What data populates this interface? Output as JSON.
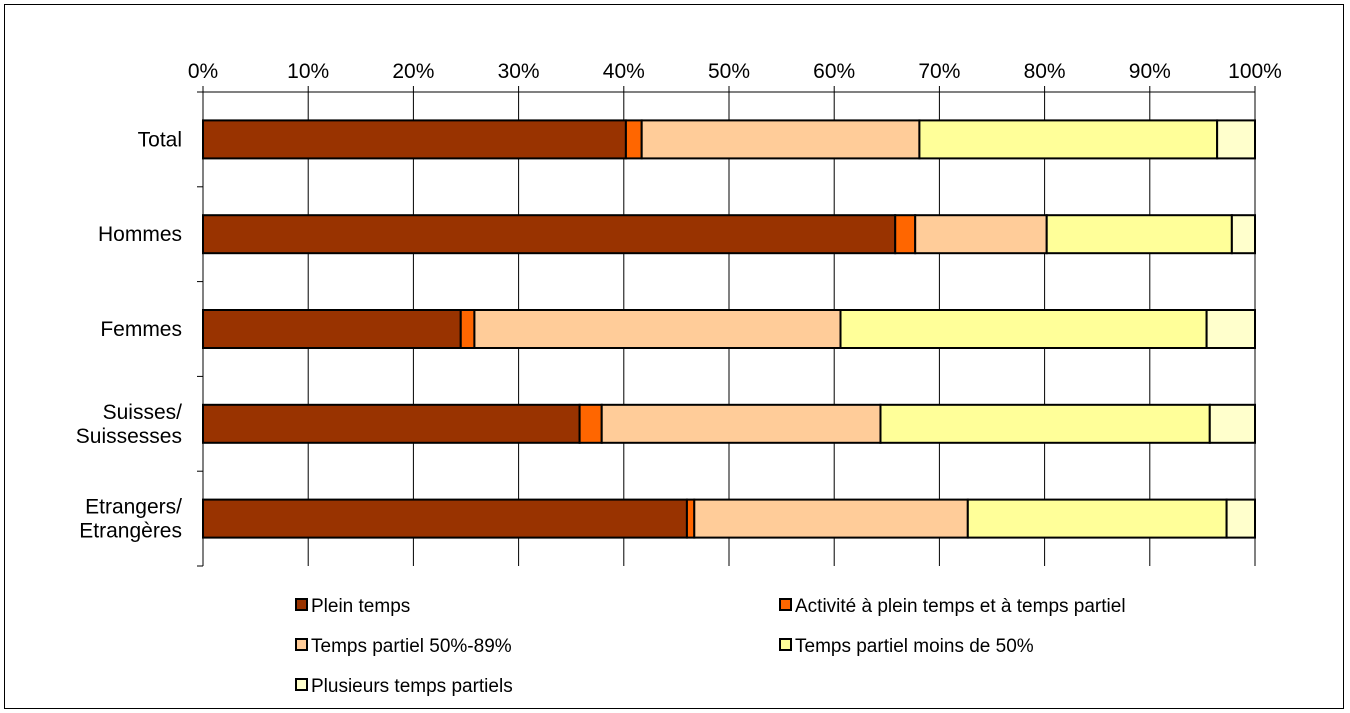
{
  "chart_data": {
    "type": "bar",
    "orientation": "horizontal",
    "stacked": true,
    "percent_stacked": true,
    "categories": [
      [
        "Total"
      ],
      [
        "Hommes"
      ],
      [
        "Femmes"
      ],
      [
        "Suisses/",
        "Suissesses"
      ],
      [
        "Etrangers/",
        "Etrangères"
      ]
    ],
    "series": [
      {
        "name": "Plein temps",
        "color": "#993300",
        "values": [
          40.2,
          65.8,
          24.5,
          35.8,
          46.0
        ]
      },
      {
        "name": "Activité à plein temps et à temps partiel",
        "color": "#FF6600",
        "values": [
          1.5,
          1.9,
          1.3,
          2.1,
          0.7
        ]
      },
      {
        "name": "Temps partiel 50%-89%",
        "color": "#FFCC99",
        "values": [
          26.4,
          12.5,
          34.8,
          26.5,
          26.0
        ]
      },
      {
        "name": "Temps partiel moins de 50%",
        "color": "#FFFF99",
        "values": [
          28.3,
          17.6,
          34.8,
          31.3,
          24.6
        ]
      },
      {
        "name": "Plusieurs temps partiels",
        "color": "#FFFFCC",
        "values": [
          3.6,
          2.2,
          4.6,
          4.3,
          2.7
        ]
      }
    ],
    "xticks": [
      "0%",
      "10%",
      "20%",
      "30%",
      "40%",
      "50%",
      "60%",
      "70%",
      "80%",
      "90%",
      "100%"
    ],
    "xlim": [
      0,
      100
    ],
    "xaxis_position": "top",
    "grid": true,
    "legend_position": "bottom"
  }
}
